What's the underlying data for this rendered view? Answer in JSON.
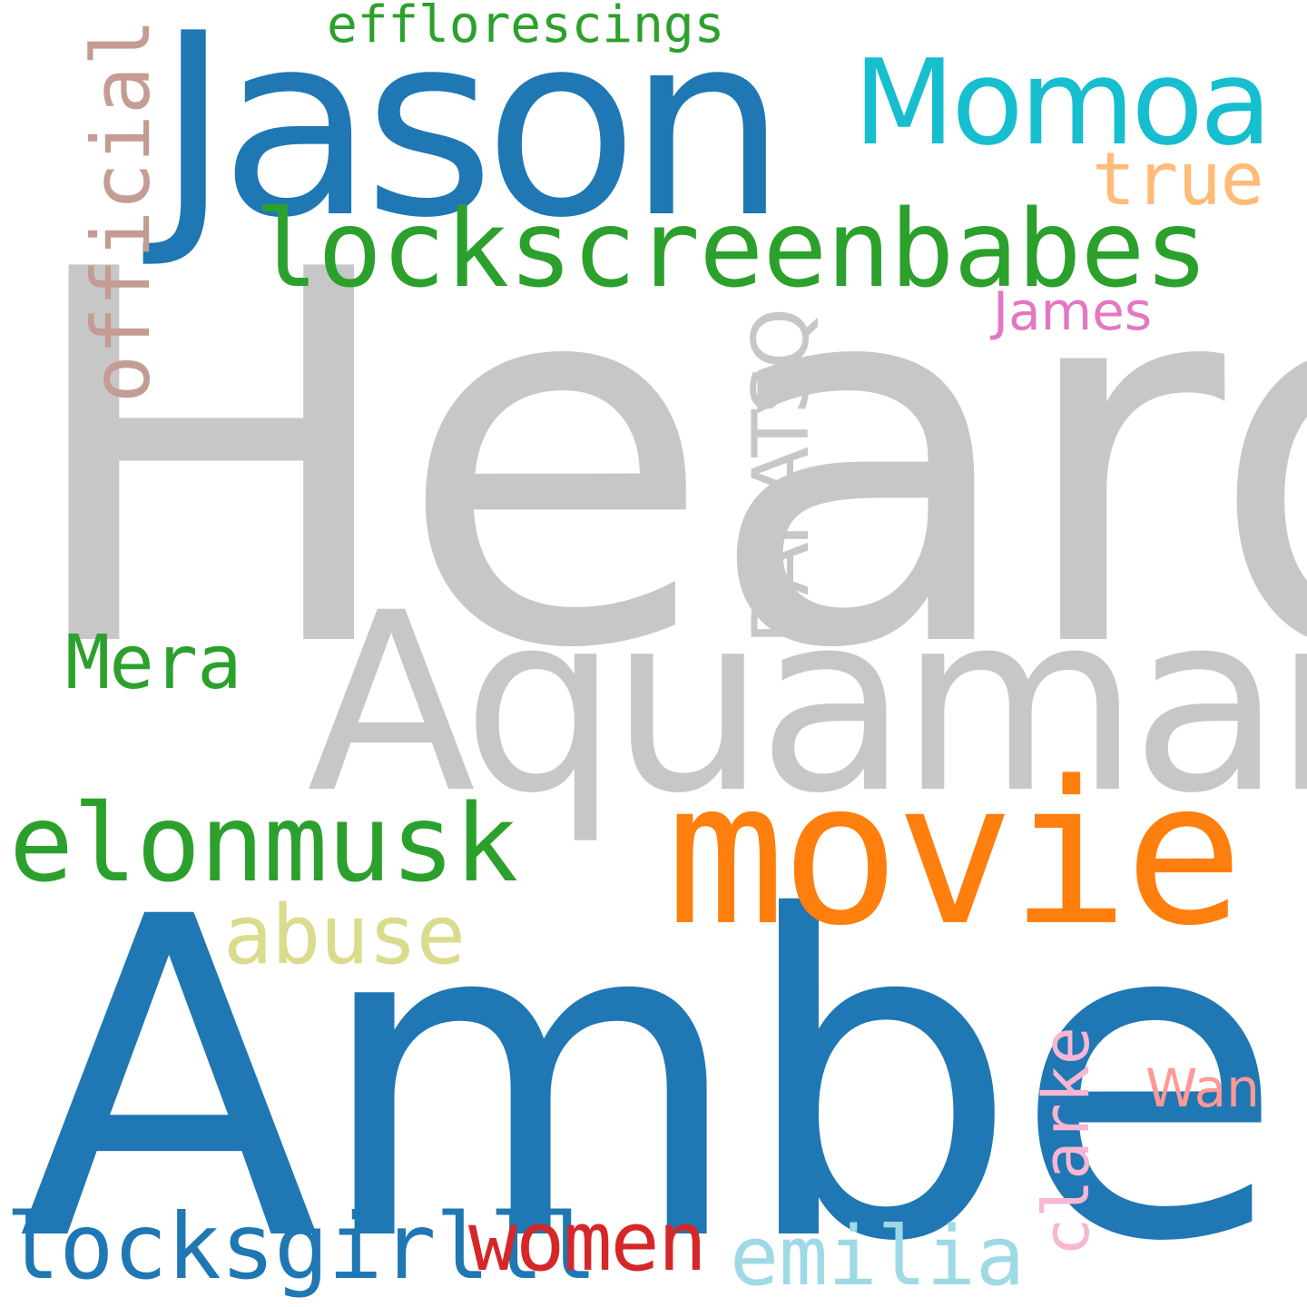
{
  "words": {
    "heard": {
      "text": "Heard",
      "color": "#c7c7c7"
    },
    "amber": {
      "text": "Amber",
      "color": "#1f77b4"
    },
    "aquaman": {
      "text": "Aquaman",
      "color": "#c7c7c7"
    },
    "jason": {
      "text": "Jason",
      "color": "#1f77b4"
    },
    "movie": {
      "text": "movie",
      "color": "#ff7f0e"
    },
    "lockscreenbabes": {
      "text": "lockscreenbabes",
      "color": "#2ca02c"
    },
    "momoa": {
      "text": "Momoa",
      "color": "#17becf"
    },
    "elonmusk": {
      "text": "elonmusk",
      "color": "#2ca02c"
    },
    "mera": {
      "text": "Mera",
      "color": "#2ca02c"
    },
    "abuse": {
      "text": "abuse",
      "color": "#dbdb8d"
    },
    "locksgirlll": {
      "text": "locksgirlll",
      "color": "#1f77b4"
    },
    "women": {
      "text": "women",
      "color": "#d62728"
    },
    "emilia": {
      "text": "emilia",
      "color": "#9edae5"
    },
    "true": {
      "text": "true",
      "color": "#ffbb78"
    },
    "james": {
      "text": "James",
      "color": "#e377c2"
    },
    "wan": {
      "text": "Wan",
      "color": "#ff9896"
    },
    "efflorescings": {
      "text": "efflorescings",
      "color": "#2ca02c"
    },
    "official": {
      "text": "official",
      "color": "#c49c94"
    },
    "baratsq": {
      "text": "BARATSQ",
      "color": "#c7c7c7"
    },
    "clarke": {
      "text": "clarke",
      "color": "#f7b6d2"
    }
  }
}
